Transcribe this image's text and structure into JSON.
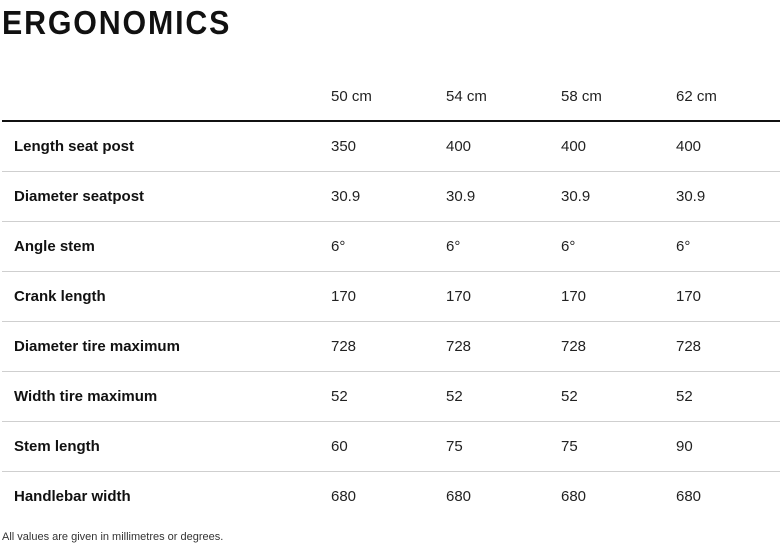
{
  "title": "ERGONOMICS",
  "table": {
    "header": [
      "",
      "50 cm",
      "54 cm",
      "58 cm",
      "62 cm"
    ],
    "rows": [
      {
        "label": "Length seat post",
        "values": [
          "350",
          "400",
          "400",
          "400"
        ]
      },
      {
        "label": "Diameter seatpost",
        "values": [
          "30.9",
          "30.9",
          "30.9",
          "30.9"
        ]
      },
      {
        "label": "Angle stem",
        "values": [
          "6°",
          "6°",
          "6°",
          "6°"
        ]
      },
      {
        "label": "Crank length",
        "values": [
          "170",
          "170",
          "170",
          "170"
        ]
      },
      {
        "label": "Diameter tire maximum",
        "values": [
          "728",
          "728",
          "728",
          "728"
        ]
      },
      {
        "label": "Width tire maximum",
        "values": [
          "52",
          "52",
          "52",
          "52"
        ]
      },
      {
        "label": "Stem length",
        "values": [
          "60",
          "75",
          "75",
          "90"
        ]
      },
      {
        "label": "Handlebar width",
        "values": [
          "680",
          "680",
          "680",
          "680"
        ]
      }
    ]
  },
  "footnote": "All values are given in millimetres or degrees."
}
